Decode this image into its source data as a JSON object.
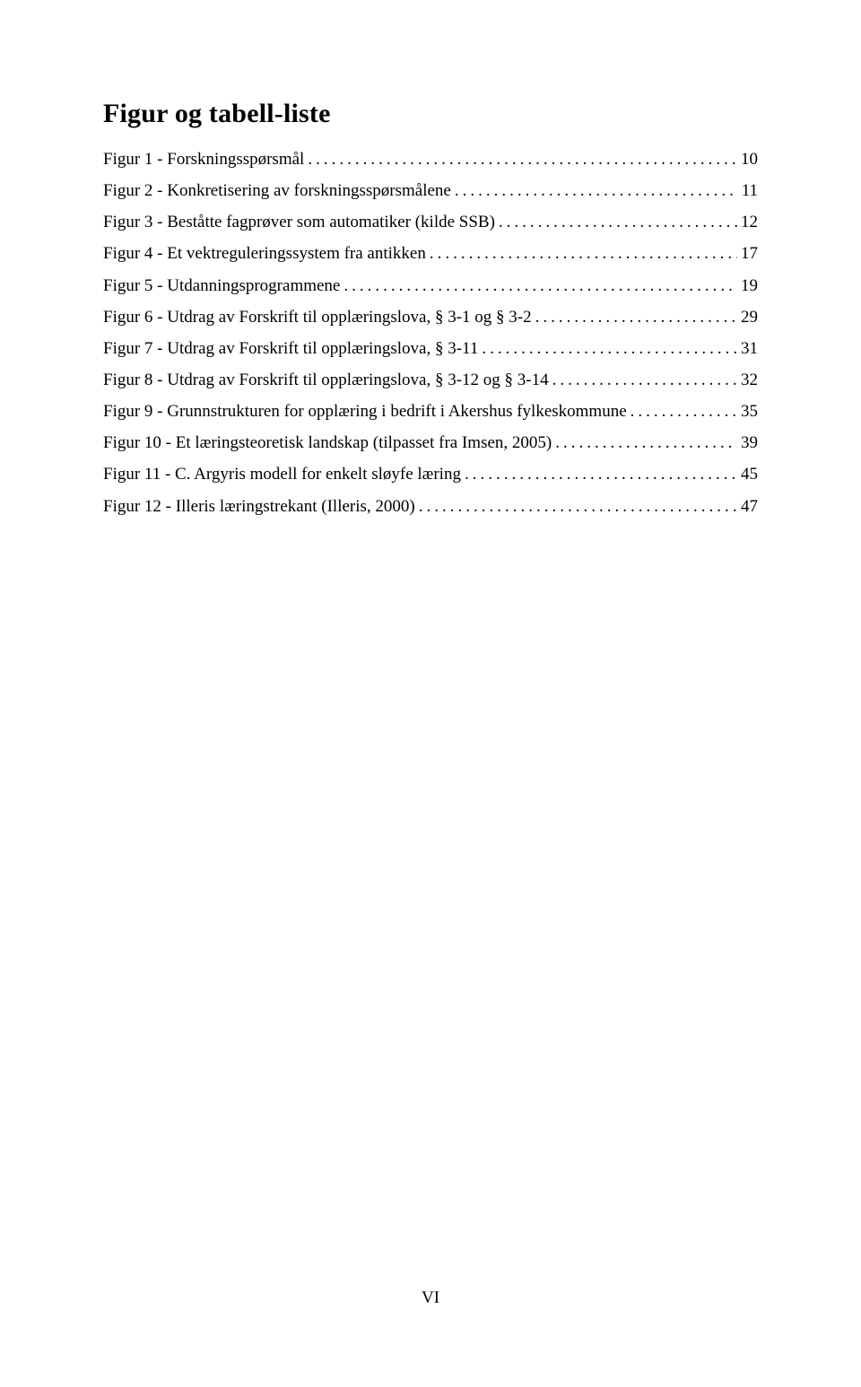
{
  "title": "Figur og tabell-liste",
  "entries": [
    {
      "label": "Figur 1 - Forskningsspørsmål",
      "page": "10"
    },
    {
      "label": "Figur 2 - Konkretisering av forskningsspørsmålene",
      "page": "11"
    },
    {
      "label": "Figur 3 - Beståtte fagprøver som automatiker (kilde SSB)",
      "page": "12"
    },
    {
      "label": "Figur 4 - Et vektreguleringssystem fra antikken",
      "page": "17"
    },
    {
      "label": "Figur 5 - Utdanningsprogrammene",
      "page": "19"
    },
    {
      "label": "Figur 6 - Utdrag av Forskrift til opplæringslova, § 3-1 og § 3-2",
      "page": "29"
    },
    {
      "label": "Figur 7 - Utdrag av Forskrift til opplæringslova, § 3-11",
      "page": "31"
    },
    {
      "label": "Figur 8 - Utdrag av Forskrift til opplæringslova, § 3-12 og § 3-14",
      "page": "32"
    },
    {
      "label": "Figur 9 - Grunnstrukturen for opplæring i bedrift i Akershus fylkeskommune",
      "page": "35"
    },
    {
      "label": "Figur 10 - Et læringsteoretisk landskap (tilpasset fra Imsen, 2005)",
      "page": "39"
    },
    {
      "label": "Figur 11 - C. Argyris modell for enkelt sløyfe læring",
      "page": "45"
    },
    {
      "label": "Figur 12 - Illeris læringstrekant (Illeris, 2000)",
      "page": "47"
    }
  ],
  "footer": "VI",
  "colors": {
    "text": "#000000",
    "background": "#ffffff"
  },
  "typography": {
    "title_fontsize": 30,
    "title_weight": "bold",
    "body_fontsize": 19,
    "font_family": "Times New Roman"
  }
}
